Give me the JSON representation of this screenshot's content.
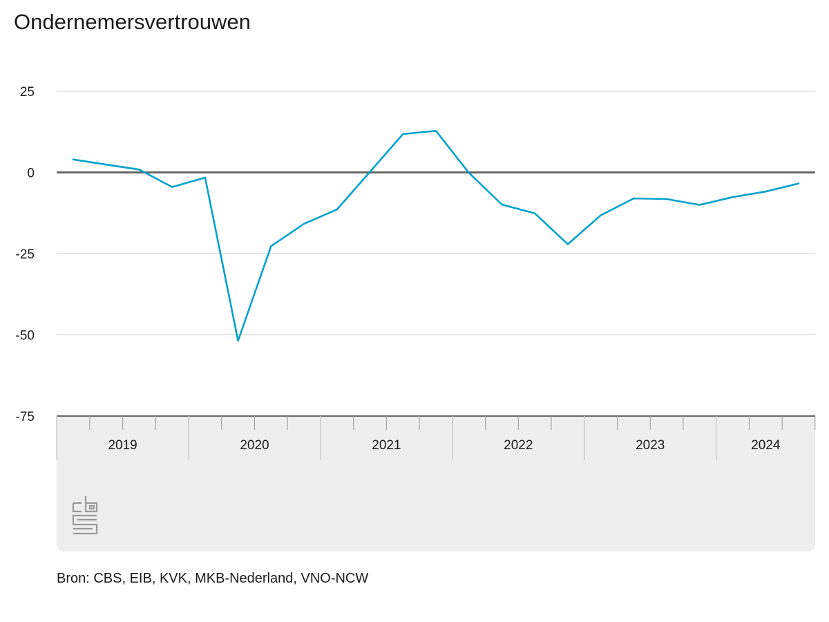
{
  "chart_data": {
    "type": "line",
    "title": "Ondernemersvertrouwen",
    "xlabel": "",
    "ylabel": "",
    "ylim": [
      -75,
      25
    ],
    "yticks": [
      25,
      0,
      -25,
      -50,
      -75
    ],
    "grid": true,
    "legend": "none",
    "x_year_labels": [
      "2019",
      "2020",
      "2021",
      "2022",
      "2023",
      "2024"
    ],
    "x": [
      "2019-K1",
      "2019-K2",
      "2019-K3",
      "2019-K4",
      "2020-K1",
      "2020-K2",
      "2020-K3",
      "2020-K4",
      "2021-K1",
      "2021-K2",
      "2021-K3",
      "2021-K4",
      "2022-K1",
      "2022-K2",
      "2022-K3",
      "2022-K4",
      "2023-K1",
      "2023-K2",
      "2023-K3",
      "2023-K4",
      "2024-K1",
      "2024-K2",
      "2024-K3"
    ],
    "series": [
      {
        "values": [
          4.0,
          2.4,
          0.9,
          -4.5,
          -1.6,
          -51.8,
          -22.7,
          -15.8,
          -11.4,
          0.2,
          11.8,
          12.8,
          -0.1,
          -9.9,
          -12.6,
          -22.1,
          -13.2,
          -8.0,
          -8.2,
          -10.0,
          -7.6,
          -5.9,
          -3.4
        ],
        "color": "#00a1cd"
      }
    ]
  },
  "source": "Bron: CBS, EIB, KVK, MKB-Nederland, VNO-NCW",
  "logo": "cbs-logo"
}
